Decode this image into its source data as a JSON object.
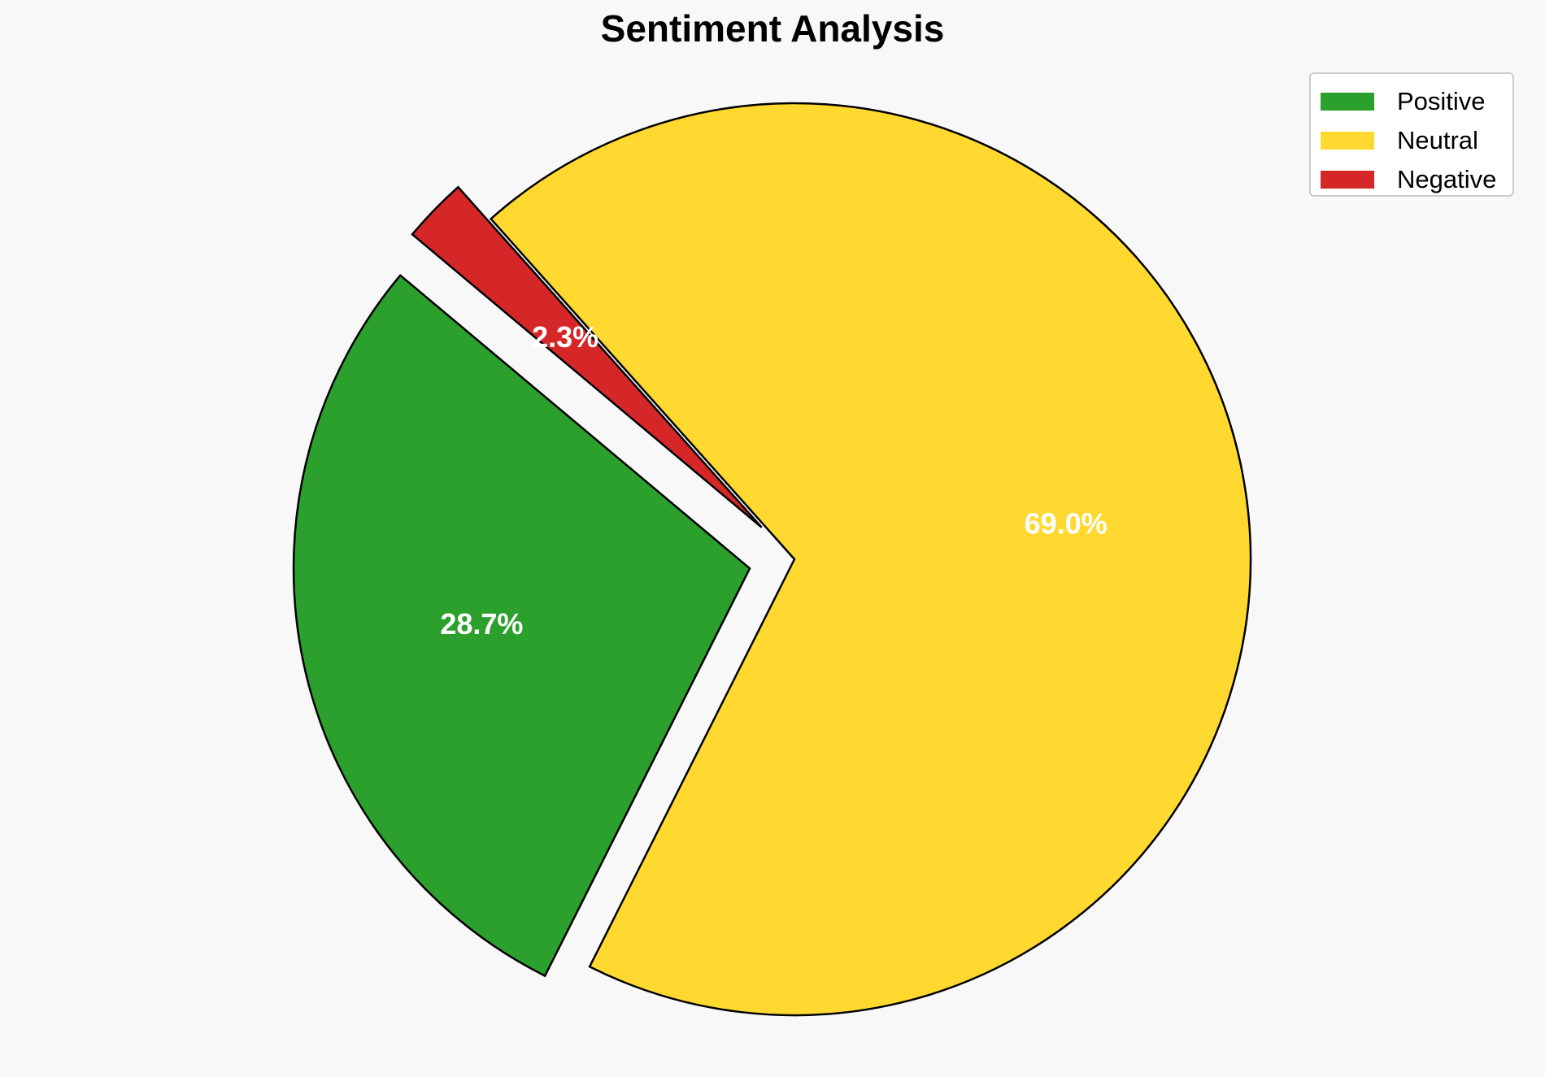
{
  "chart_data": {
    "type": "pie",
    "title": "Sentiment Analysis",
    "categories": [
      "Positive",
      "Neutral",
      "Negative"
    ],
    "values": [
      28.7,
      69.0,
      2.3
    ],
    "labels": [
      "28.7%",
      "69.0%",
      "2.3%"
    ],
    "colors": [
      "#2ca02c",
      "#ffd92f",
      "#d62728"
    ],
    "exploded": [
      true,
      false,
      true
    ],
    "start_angle_deg": 140,
    "direction": "counterclockwise",
    "edge_color": "#000000",
    "label_color": "#ffffff",
    "legend": {
      "placement": "top-right",
      "entries": [
        "Positive",
        "Neutral",
        "Negative"
      ]
    }
  }
}
